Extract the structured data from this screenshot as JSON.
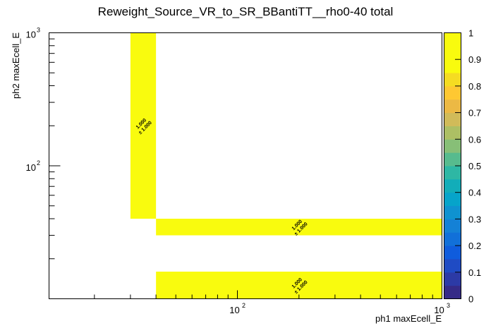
{
  "chart_data": {
    "type": "heatmap",
    "title": "Reweight_Source_VR_to_SR_BBantiTT__rho0-40 total",
    "xlabel": "ph1 maxEcell_E",
    "ylabel": "ph2 maxEcell_E",
    "xscale": "log",
    "yscale": "log",
    "xlim": [
      12,
      1000
    ],
    "ylim": [
      10,
      1000
    ],
    "x_ticks": [
      {
        "base": "10",
        "exp": "2",
        "value": 100
      },
      {
        "base": "10",
        "exp": "3",
        "value": 1000
      }
    ],
    "y_ticks": [
      {
        "base": "10",
        "exp": "2",
        "value": 100
      },
      {
        "base": "10",
        "exp": "3",
        "value": 1000
      }
    ],
    "zlim": [
      0,
      1
    ],
    "colorbar_ticks": [
      "0",
      "0.1",
      "0.2",
      "0.3",
      "0.4",
      "0.5",
      "0.6",
      "0.7",
      "0.8",
      "0.9",
      "1"
    ],
    "cells": [
      {
        "x": [
          30,
          40
        ],
        "y": [
          40,
          1000
        ],
        "value": 1.0,
        "label": "1.000",
        "error": "± 1.000"
      },
      {
        "x": [
          40,
          1000
        ],
        "y": [
          30,
          40
        ],
        "value": 1.0,
        "label": "1.000",
        "error": "± 1.000"
      },
      {
        "x": [
          40,
          1000
        ],
        "y": [
          10,
          16
        ],
        "value": 1.0,
        "label": "1.000",
        "error": "± 1.000"
      }
    ],
    "grid": false,
    "colorbar": "right"
  }
}
